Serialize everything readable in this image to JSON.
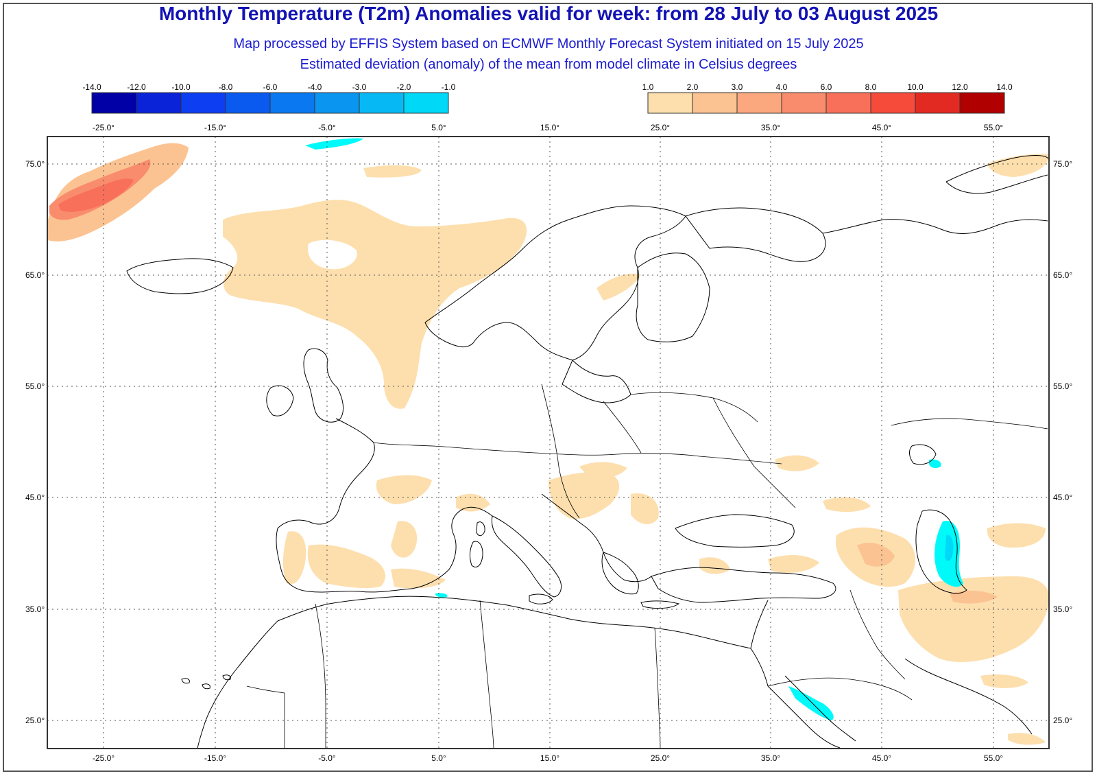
{
  "header": {
    "title": "Monthly Temperature (T2m) Anomalies valid for week: from 28 July to 03 August 2025",
    "subtitle1": "Map processed by EFFIS System based on ECMWF Monthly Forecast System initiated on 15 July 2025",
    "subtitle2": "Estimated deviation (anomaly) of the mean from model climate in Celsius degrees"
  },
  "legend_negative": {
    "labels": [
      "-14.0",
      "-12.0",
      "-10.0",
      "-8.0",
      "-6.0",
      "-4.0",
      "-3.0",
      "-2.0",
      "-1.0"
    ],
    "colors": [
      "#0000a6",
      "#0a23d8",
      "#0d3ef2",
      "#0a5af0",
      "#0a78f0",
      "#0a96f0",
      "#06b8f4",
      "#00d8f8",
      "#00fafa"
    ]
  },
  "legend_positive": {
    "labels": [
      "1.0",
      "2.0",
      "3.0",
      "4.0",
      "6.0",
      "8.0",
      "10.0",
      "12.0",
      "14.0"
    ],
    "colors": [
      "#fddfae",
      "#fcc392",
      "#fba87e",
      "#f98c6c",
      "#f8705a",
      "#f64a3a",
      "#e32a22",
      "#b00000"
    ]
  },
  "axes": {
    "lon_labels": [
      "-25.0°",
      "-15.0°",
      "-5.0°",
      "5.0°",
      "15.0°",
      "25.0°",
      "35.0°",
      "45.0°",
      "55.0°"
    ],
    "lat_labels": [
      "75.0°",
      "65.0°",
      "55.0°",
      "45.0°",
      "35.0°",
      "25.0°"
    ]
  },
  "map_colors": {
    "coast": "#000000",
    "warm1": "#fddfae",
    "warm2": "#fcc392",
    "warm3": "#fba87e",
    "warm4": "#f98c6c",
    "warm6": "#f8705a",
    "cold1": "#00fafa",
    "cold2": "#00d8f8"
  }
}
